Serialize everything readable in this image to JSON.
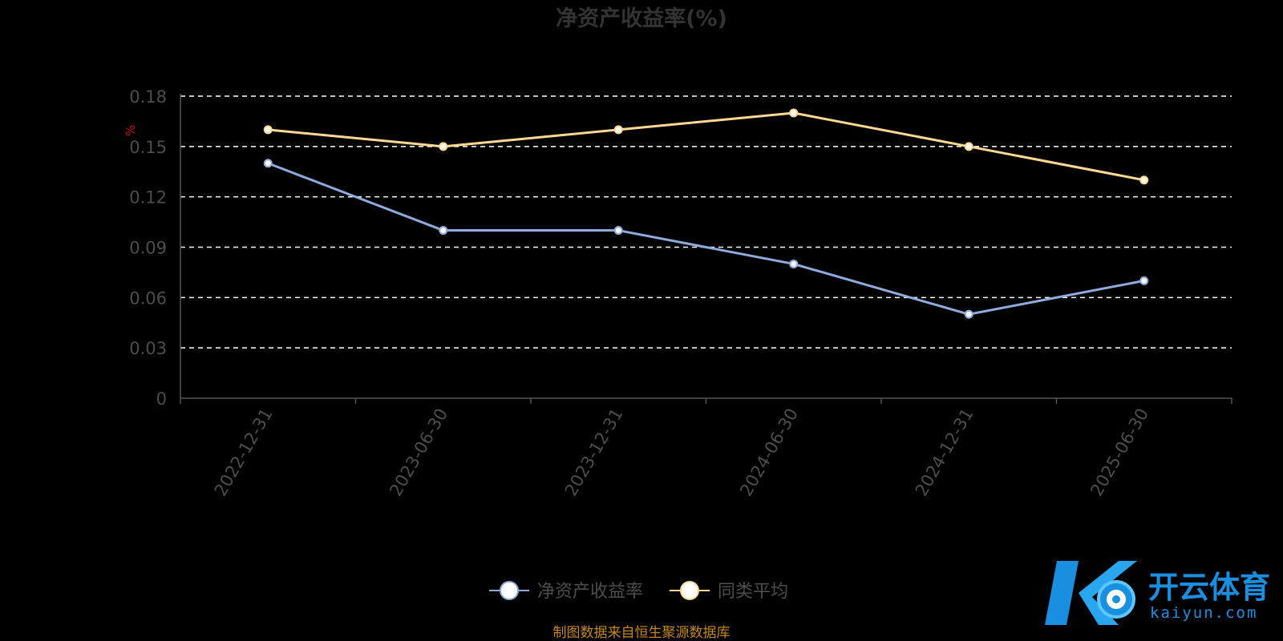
{
  "chart_data": {
    "type": "line",
    "title": "净资产收益率(%)",
    "unit_label": "%",
    "categories": [
      "2022-12-31",
      "2023-06-30",
      "2023-12-31",
      "2024-06-30",
      "2024-12-31",
      "2025-06-30"
    ],
    "series": [
      {
        "name": "净资产收益率",
        "values": [
          0.14,
          0.1,
          0.1,
          0.08,
          0.05,
          0.07
        ],
        "color": "#8faadc"
      },
      {
        "name": "同类平均",
        "values": [
          0.16,
          0.15,
          0.16,
          0.17,
          0.15,
          0.13
        ],
        "color": "#ffd993"
      }
    ],
    "ylim": [
      0,
      0.18
    ],
    "yticks": [
      "0",
      "0.03",
      "0.06",
      "0.09",
      "0.12",
      "0.15",
      "0.18"
    ],
    "grid": true,
    "legend_position": "bottom-center"
  },
  "source_note": "制图数据来自恒生聚源数据库",
  "watermark": {
    "brand_cn": "开云体育",
    "brand_en": "kaiyun.com",
    "logo_letter": "K"
  },
  "colors": {
    "background": "#000000",
    "grid": "#ffffff",
    "axis": "#555555"
  }
}
